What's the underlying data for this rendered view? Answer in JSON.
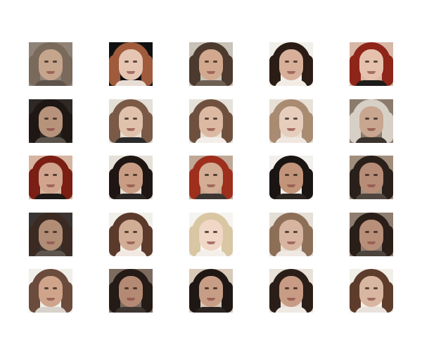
{
  "grid": {
    "rows": 5,
    "cols": 5,
    "images": [
      {
        "name": "face-r1c1",
        "bg": "#8f8377",
        "hair": "#7a6a5c",
        "skin": "#c6a58d",
        "shirt": "#5e544c"
      },
      {
        "name": "face-r1c2",
        "bg": "#111111",
        "hair": "#a05a3c",
        "skin": "#e6c6b2",
        "shirt": "#e8ddd4"
      },
      {
        "name": "face-r1c3",
        "bg": "#c9c2b7",
        "hair": "#4d3a2f",
        "skin": "#d2a98e",
        "shirt": "#6e5f53"
      },
      {
        "name": "face-r1c4",
        "bg": "#f1efe9",
        "hair": "#2b1c16",
        "skin": "#d8b09a",
        "shirt": "#f3ece6"
      },
      {
        "name": "face-r1c5",
        "bg": "#d7b8a6",
        "hair": "#8f2418",
        "skin": "#e6c2ae",
        "shirt": "#1e1c1a"
      },
      {
        "name": "face-r2c1",
        "bg": "#2e2925",
        "hair": "#1e1714",
        "skin": "#b8937c",
        "shirt": "#5a534b"
      },
      {
        "name": "face-r2c2",
        "bg": "#e3dfd6",
        "hair": "#7a5946",
        "skin": "#e0c2ac",
        "shirt": "#2a2a2a"
      },
      {
        "name": "face-r2c3",
        "bg": "#e6e1d8",
        "hair": "#6f503e",
        "skin": "#dcb9a2",
        "shirt": "#f3eee9"
      },
      {
        "name": "face-r2c4",
        "bg": "#e7e0d6",
        "hair": "#a98b72",
        "skin": "#e6cdbc",
        "shirt": "#f0e8e0"
      },
      {
        "name": "face-r2c5",
        "bg": "#8b7b6d",
        "hair": "#d7d0c6",
        "skin": "#c8a690",
        "shirt": "#3a322c"
      },
      {
        "name": "face-r3c1",
        "bg": "#d6b5a1",
        "hair": "#7b1e14",
        "skin": "#d0a48d",
        "shirt": "#1d1a18"
      },
      {
        "name": "face-r3c2",
        "bg": "#e6e1d8",
        "hair": "#1f1613",
        "skin": "#c99d84",
        "shirt": "#2a2623"
      },
      {
        "name": "face-r3c3",
        "bg": "#bfa896",
        "hair": "#9f2f1d",
        "skin": "#d3ad94",
        "shirt": "#3c3632"
      },
      {
        "name": "face-r3c4",
        "bg": "#f2f0ec",
        "hair": "#1a1413",
        "skin": "#c29479",
        "shirt": "#2c2623"
      },
      {
        "name": "face-r3c5",
        "bg": "#a18d7b",
        "hair": "#2a201b",
        "skin": "#b88d77",
        "shirt": "#4e463f"
      },
      {
        "name": "face-r4c1",
        "bg": "#3a3532",
        "hair": "#3b2a22",
        "skin": "#b28d76",
        "shirt": "#5c544d"
      },
      {
        "name": "face-r4c2",
        "bg": "#f1efe9",
        "hair": "#5b3a2c",
        "skin": "#d2ad95",
        "shirt": "#f2e9e2"
      },
      {
        "name": "face-r4c3",
        "bg": "#f6f4f0",
        "hair": "#d9c6a2",
        "skin": "#f0d7c6",
        "shirt": "#f4efe9"
      },
      {
        "name": "face-r4c4",
        "bg": "#e5dfd6",
        "hair": "#8d6e57",
        "skin": "#d8b5a0",
        "shirt": "#f0e8e2"
      },
      {
        "name": "face-r4c5",
        "bg": "#8e7d70",
        "hair": "#2a1e19",
        "skin": "#b88f79",
        "shirt": "#4b433c"
      },
      {
        "name": "face-r5c1",
        "bg": "#f0eee8",
        "hair": "#6a4b3c",
        "skin": "#cfa48b",
        "shirt": "#d8d2ca"
      },
      {
        "name": "face-r5c2",
        "bg": "#7c6b5f",
        "hair": "#241a16",
        "skin": "#b58a74",
        "shirt": "#3e3631"
      },
      {
        "name": "face-r5c3",
        "bg": "#d7c8b8",
        "hair": "#1f1714",
        "skin": "#c89d86",
        "shirt": "#2a2522"
      },
      {
        "name": "face-r5c4",
        "bg": "#e8e1d8",
        "hair": "#2b1e18",
        "skin": "#c89b84",
        "shirt": "#f0e8e2"
      },
      {
        "name": "face-r5c5",
        "bg": "#f2efe9",
        "hair": "#5d3c2c",
        "skin": "#d9b6a1",
        "shirt": "#e9e2dc"
      }
    ]
  }
}
